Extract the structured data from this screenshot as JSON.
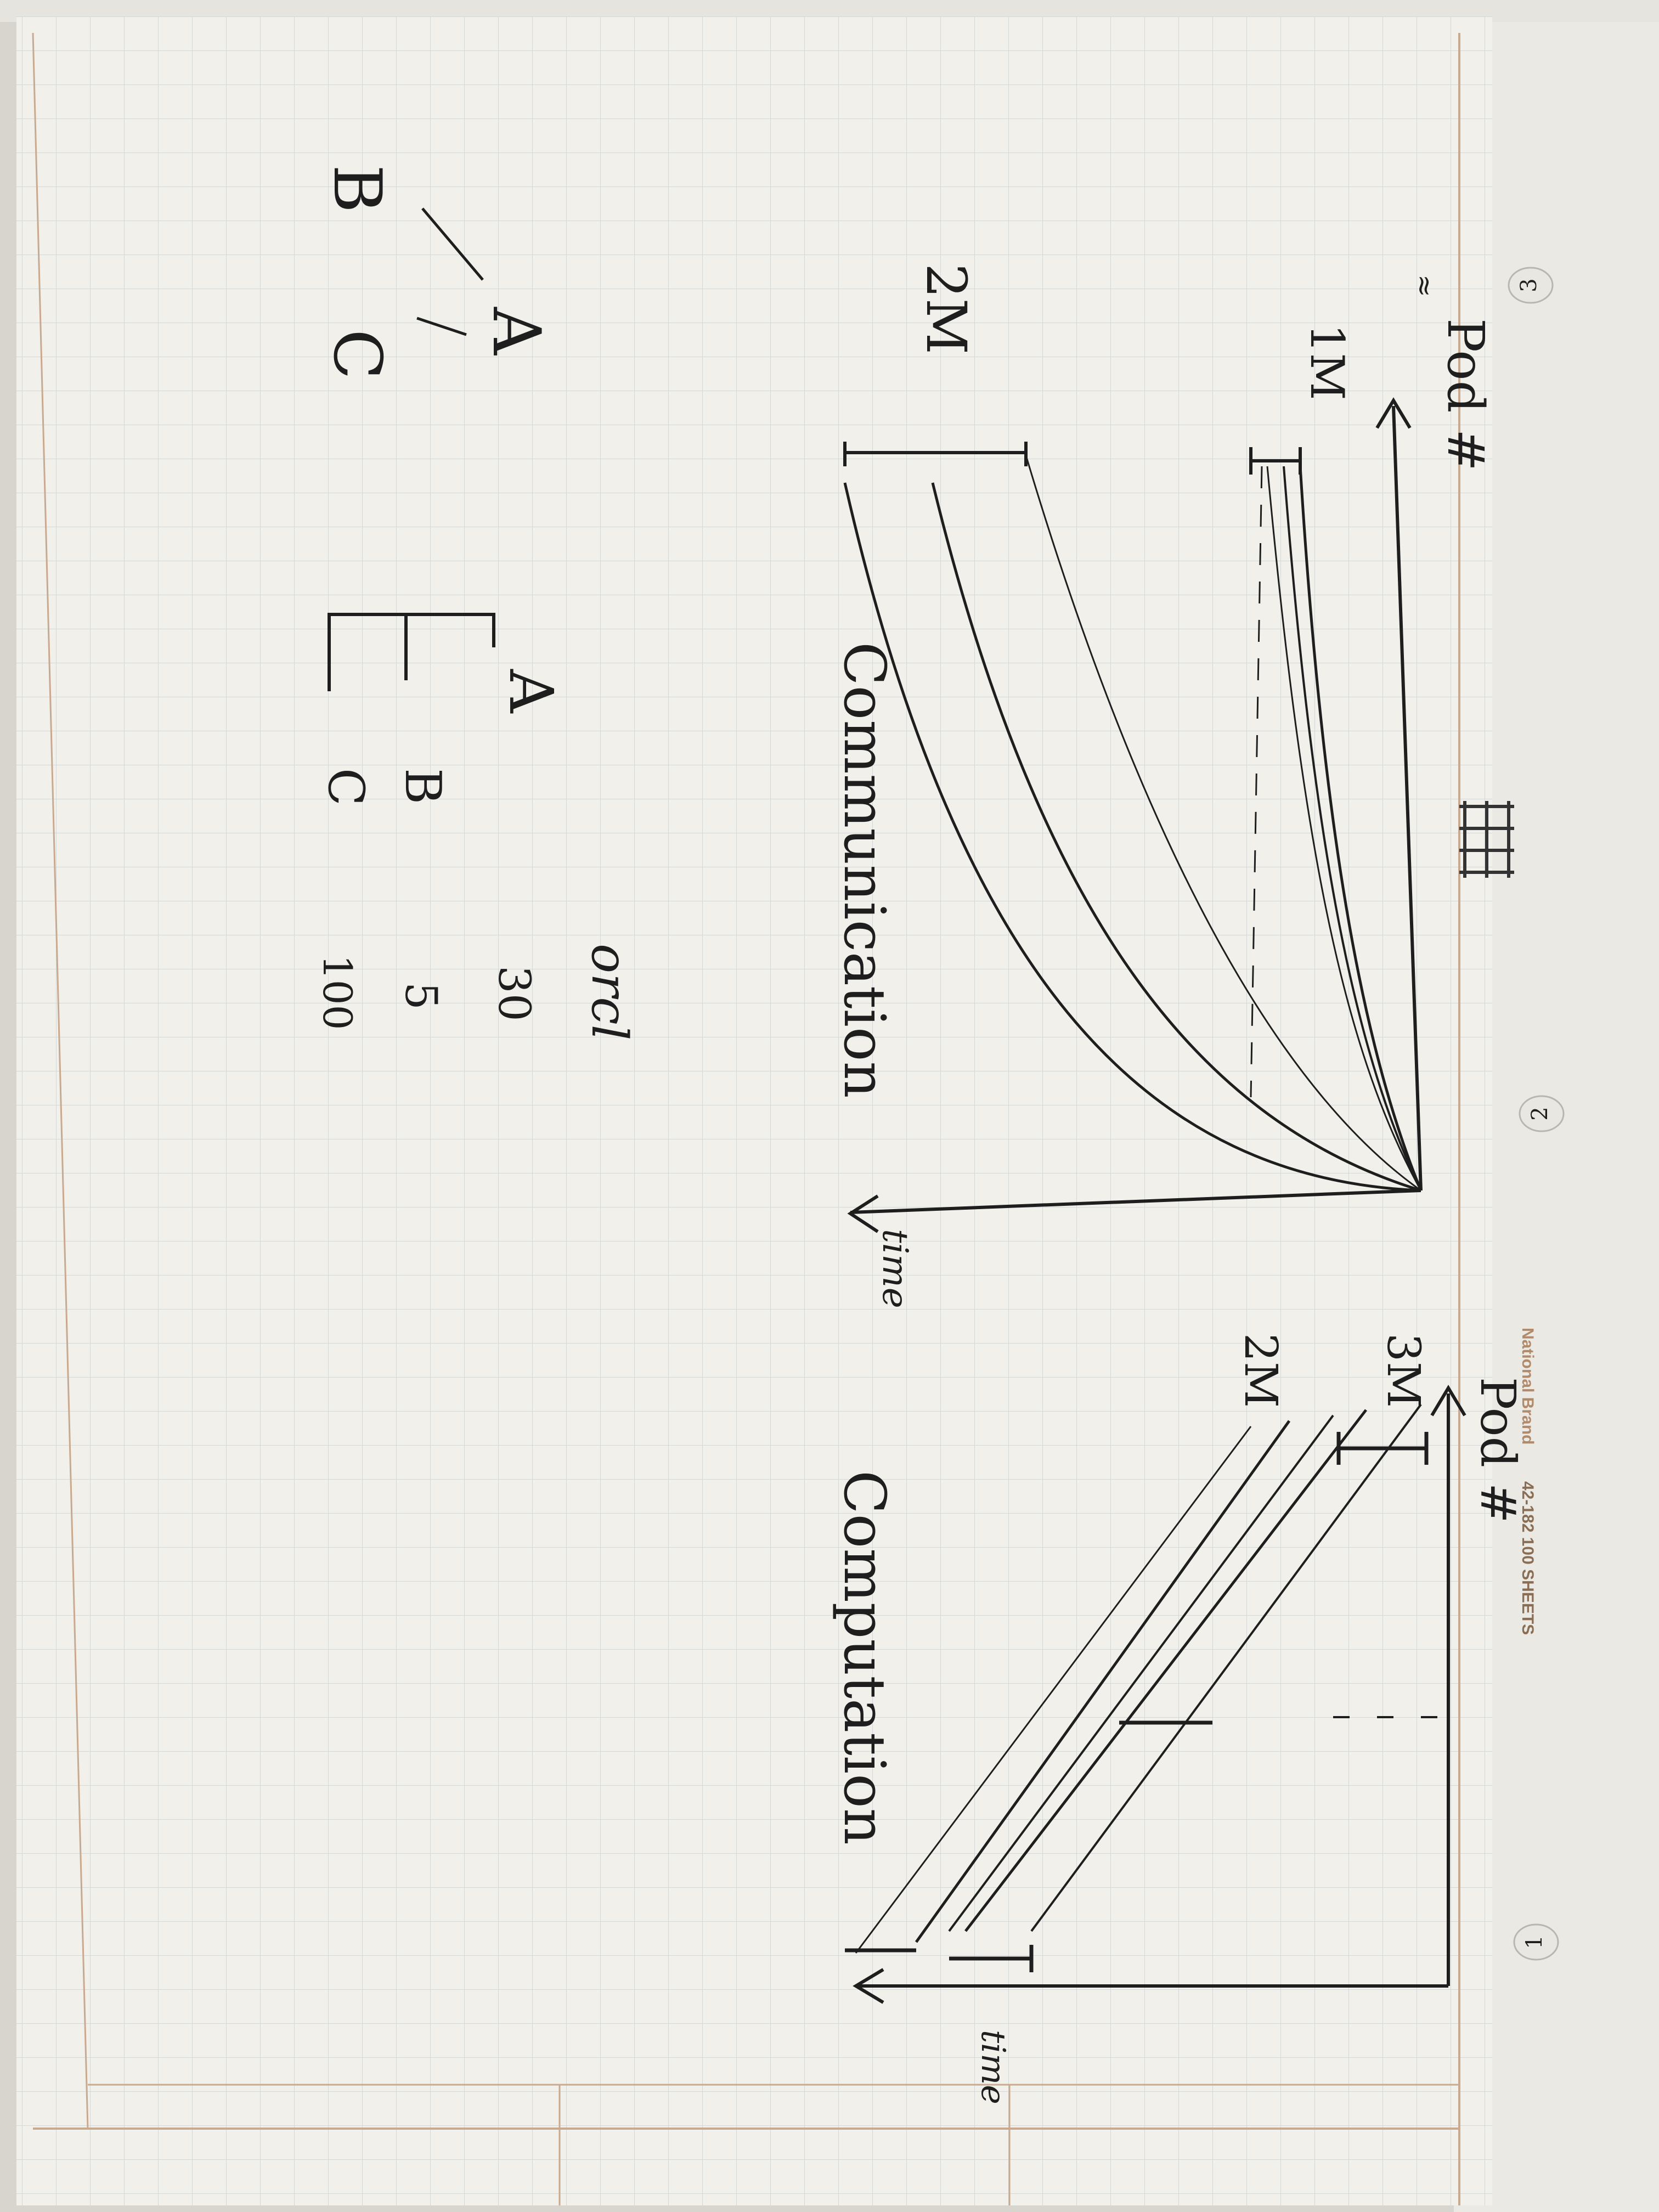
{
  "pad_brand": {
    "logo_text": "National Brand",
    "product": "42-182 100 SHEETS"
  },
  "page_markers": [
    "1",
    "2",
    "3"
  ],
  "left_plot": {
    "x_axis_label": "Pod #",
    "y_axis_label": "time",
    "curve_labels": [
      "1M",
      "2M"
    ],
    "caption": "Communication"
  },
  "right_plot": {
    "x_axis_label": "Pod #",
    "y_axis_label": "time",
    "curve_labels": [
      "3M",
      "2M"
    ],
    "caption": "Computation"
  },
  "tree": {
    "root": "A",
    "children": [
      "B",
      "C"
    ]
  },
  "hierarchy": {
    "root": "A",
    "children": [
      "B",
      "C"
    ]
  },
  "table": {
    "header": "orcl",
    "values": [
      "30",
      "5",
      "100"
    ]
  },
  "colors": {
    "paper": "#f1f0ea",
    "grid": "#d3d7d5",
    "ink": "#1e1e1e",
    "margin_line": "#c9a98f",
    "brand": "#b08a6a"
  }
}
